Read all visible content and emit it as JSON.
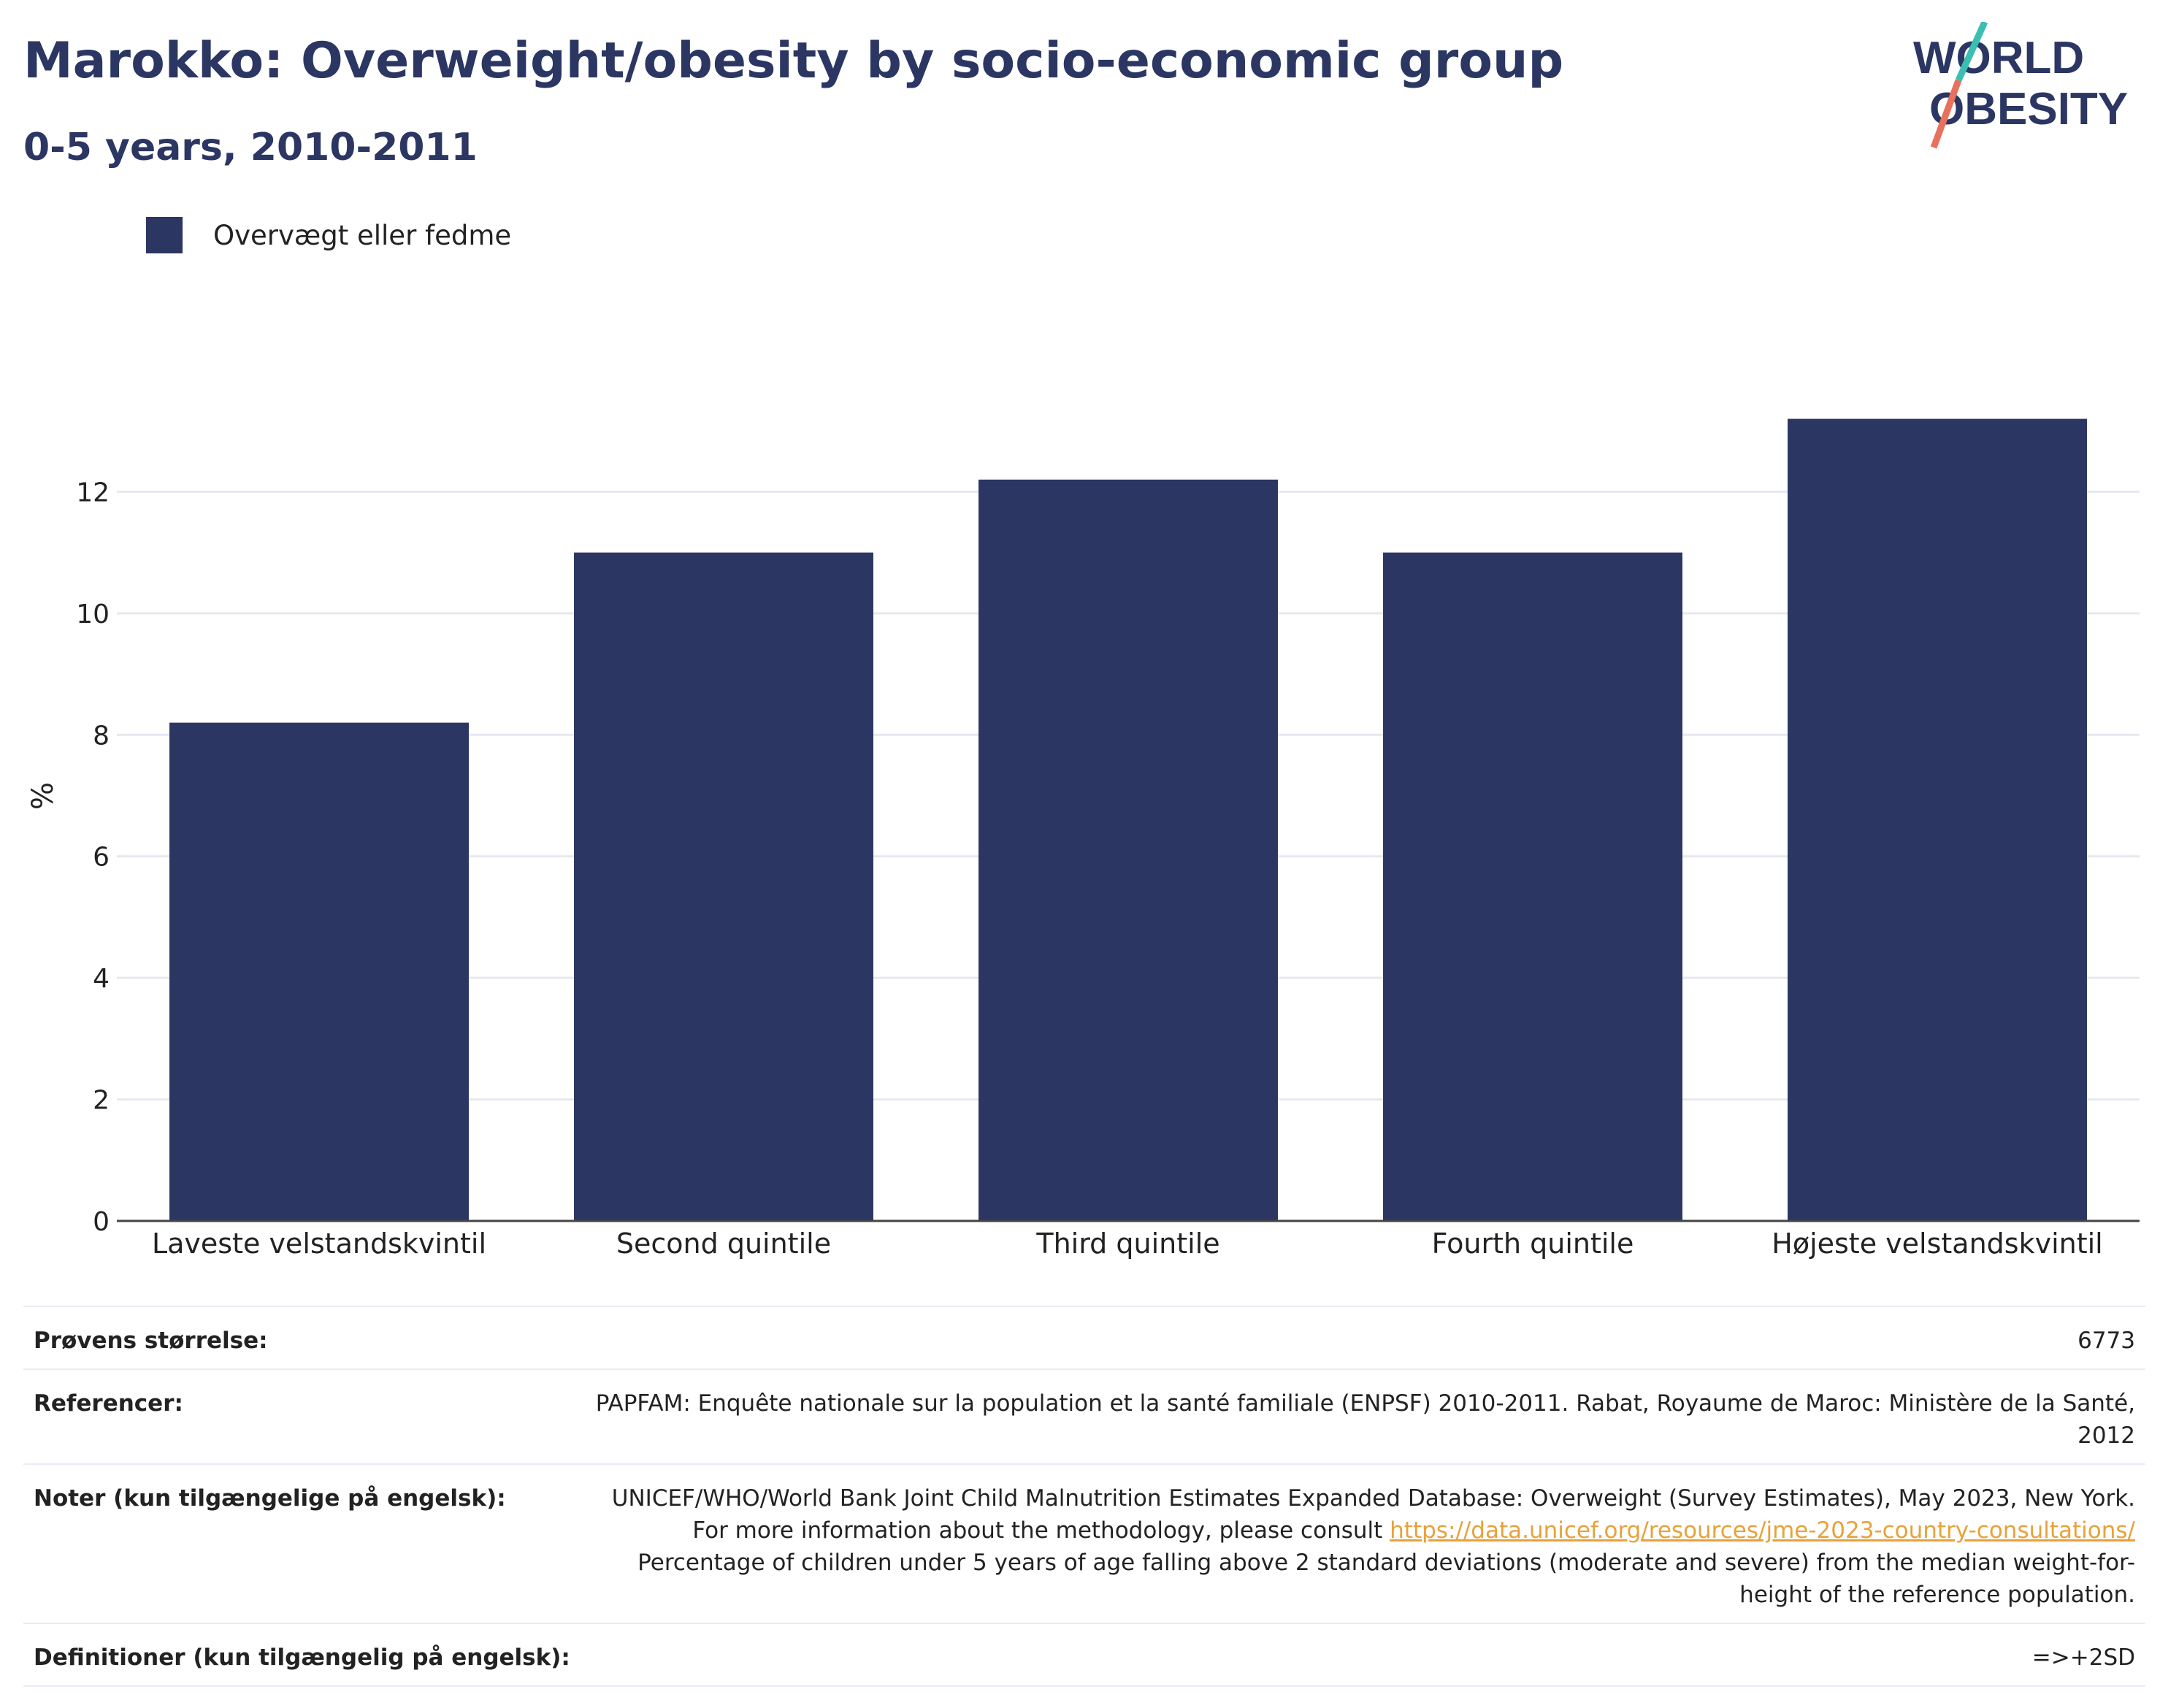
{
  "header": {
    "title": "Marokko: Overweight/obesity by socio-economic group",
    "subtitle": "0-5 years, 2010-2011"
  },
  "logo": {
    "line1": "WORLD",
    "line2": "OBESITY",
    "colors": {
      "text": "#2b3663",
      "slash_top": "#3bbfb2",
      "slash_bottom": "#e8715d"
    }
  },
  "chart_data": {
    "type": "bar",
    "categories": [
      "Laveste velstandskvintil",
      "Second quintile",
      "Third quintile",
      "Fourth quintile",
      "Højeste velstandskvintil"
    ],
    "series": [
      {
        "name": "Overvægt eller fedme",
        "values": [
          8.2,
          11.0,
          12.2,
          11.0,
          13.2
        ],
        "color": "#2b3663"
      }
    ],
    "ylabel": "%",
    "ylim": [
      0,
      14
    ],
    "yticks": [
      0,
      2,
      4,
      6,
      8,
      10,
      12
    ],
    "grid": true,
    "legend_position": "top-left"
  },
  "meta": {
    "sample_size": {
      "label": "Prøvens størrelse:",
      "value": "6773"
    },
    "references": {
      "label": "Referencer:",
      "value": "PAPFAM: Enquête nationale sur la population et la santé familiale (ENPSF) 2010-2011. Rabat, Royaume de Maroc: Ministère de la Santé, 2012"
    },
    "notes": {
      "label": "Noter (kun tilgængelige på engelsk):",
      "text1": "UNICEF/WHO/World Bank Joint Child Malnutrition Estimates Expanded Database: Overweight (Survey Estimates), May 2023, New York. For more information about the methodology, please consult",
      "link": "https://data.unicef.org/resources/jme-2023-country-consultations/",
      "text2": "Percentage of children under 5 years of age falling above 2 standard deviations (moderate and severe) from the median weight-for-height of the reference population."
    },
    "definitions": {
      "label": "Definitioner (kun tilgængelig på engelsk):",
      "value": "=>+2SD"
    }
  }
}
